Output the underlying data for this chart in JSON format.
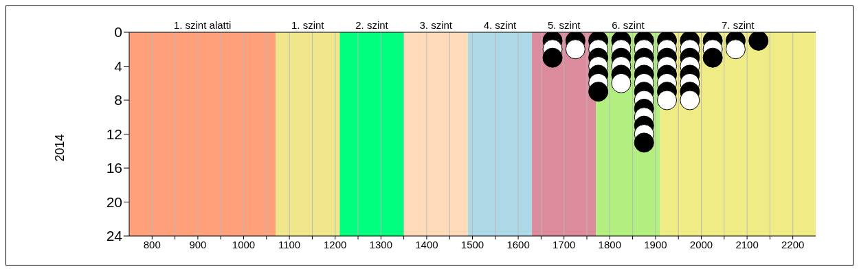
{
  "chart_data": {
    "type": "scatter",
    "ylabel": "2014",
    "xlim": [
      750,
      2250
    ],
    "xticks": [
      800,
      {
        "value": 850,
        "label": null
      },
      900,
      {
        "value": 950,
        "label": null
      },
      1000,
      {
        "value": 1050,
        "label": null
      },
      1100,
      {
        "value": 1150,
        "label": null
      },
      1200,
      {
        "value": 1250,
        "label": null
      },
      1300,
      {
        "value": 1350,
        "label": null
      },
      1400,
      {
        "value": 1450,
        "label": null
      },
      1500,
      {
        "value": 1550,
        "label": null
      },
      1600,
      {
        "value": 1650,
        "label": null
      },
      1700,
      {
        "value": 1750,
        "label": null
      },
      1800,
      {
        "value": 1850,
        "label": null
      },
      1900,
      {
        "value": 1950,
        "label": null
      },
      2000,
      {
        "value": 2050,
        "label": null
      },
      2100,
      {
        "value": 2150,
        "label": null
      },
      2200
    ],
    "ylim": [
      24,
      0
    ],
    "yticks": [
      0,
      4,
      8,
      12,
      16,
      20,
      24
    ],
    "grid": "x",
    "marker": "circle",
    "bands": [
      {
        "axis": "x",
        "from": 750,
        "to": 1070,
        "label": "1. szint alatti",
        "color": "#ffa07a"
      },
      {
        "axis": "x",
        "from": 1070,
        "to": 1210,
        "label": "1. szint",
        "color": "#f0e68c"
      },
      {
        "axis": "x",
        "from": 1210,
        "to": 1350,
        "label": "2. szint",
        "color": "#00ff7f"
      },
      {
        "axis": "x",
        "from": 1350,
        "to": 1490,
        "label": "3. szint",
        "color": "#ffdab9"
      },
      {
        "axis": "x",
        "from": 1490,
        "to": 1630,
        "label": "4. szint",
        "color": "#add8e6"
      },
      {
        "axis": "x",
        "from": 1630,
        "to": 1770,
        "label": "5. szint",
        "color": "#db8b9c"
      },
      {
        "axis": "x",
        "from": 1770,
        "to": 1910,
        "label": "6. szint",
        "color": "#b3ee80"
      },
      {
        "axis": "x",
        "from": 1910,
        "to": 2250,
        "label": "7. szint",
        "color": "#f0ec85"
      }
    ],
    "series": [
      {
        "x": [
          1675,
          1675,
          1675,
          1725,
          1725,
          1775,
          1775,
          1775,
          1775,
          1775,
          1775,
          1775,
          1825,
          1825,
          1825,
          1825,
          1825,
          1825,
          1875,
          1875,
          1875,
          1875,
          1875,
          1875,
          1875,
          1875,
          1875,
          1875,
          1875,
          1875,
          1875,
          1925,
          1925,
          1925,
          1925,
          1925,
          1925,
          1925,
          1925,
          1975,
          1975,
          1975,
          1975,
          1975,
          1975,
          1975,
          1975,
          2025,
          2025,
          2025,
          2075,
          2075,
          2125
        ],
        "values": [
          1,
          2,
          3,
          1,
          2,
          1,
          2,
          3,
          4,
          5,
          6,
          7,
          1,
          2,
          3,
          4,
          5,
          6,
          1,
          2,
          3,
          4,
          5,
          6,
          7,
          8,
          9,
          10,
          11,
          12,
          13,
          1,
          2,
          3,
          4,
          5,
          6,
          7,
          8,
          1,
          2,
          3,
          4,
          5,
          6,
          7,
          8,
          1,
          2,
          3,
          1,
          2,
          1
        ],
        "colors": [
          "#000000",
          "#ffffff",
          "#000000",
          "#000000",
          "#ffffff",
          "#000000",
          "#ffffff",
          "#000000",
          "#ffffff",
          "#000000",
          "#ffffff",
          "#000000",
          "#000000",
          "#ffffff",
          "#000000",
          "#ffffff",
          "#000000",
          "#ffffff",
          "#000000",
          "#ffffff",
          "#000000",
          "#ffffff",
          "#000000",
          "#ffffff",
          "#000000",
          "#ffffff",
          "#000000",
          "#ffffff",
          "#000000",
          "#ffffff",
          "#000000",
          "#000000",
          "#ffffff",
          "#000000",
          "#ffffff",
          "#000000",
          "#ffffff",
          "#000000",
          "#ffffff",
          "#000000",
          "#ffffff",
          "#000000",
          "#ffffff",
          "#000000",
          "#ffffff",
          "#000000",
          "#ffffff",
          "#000000",
          "#ffffff",
          "#000000",
          "#000000",
          "#ffffff",
          "#000000"
        ]
      }
    ]
  }
}
